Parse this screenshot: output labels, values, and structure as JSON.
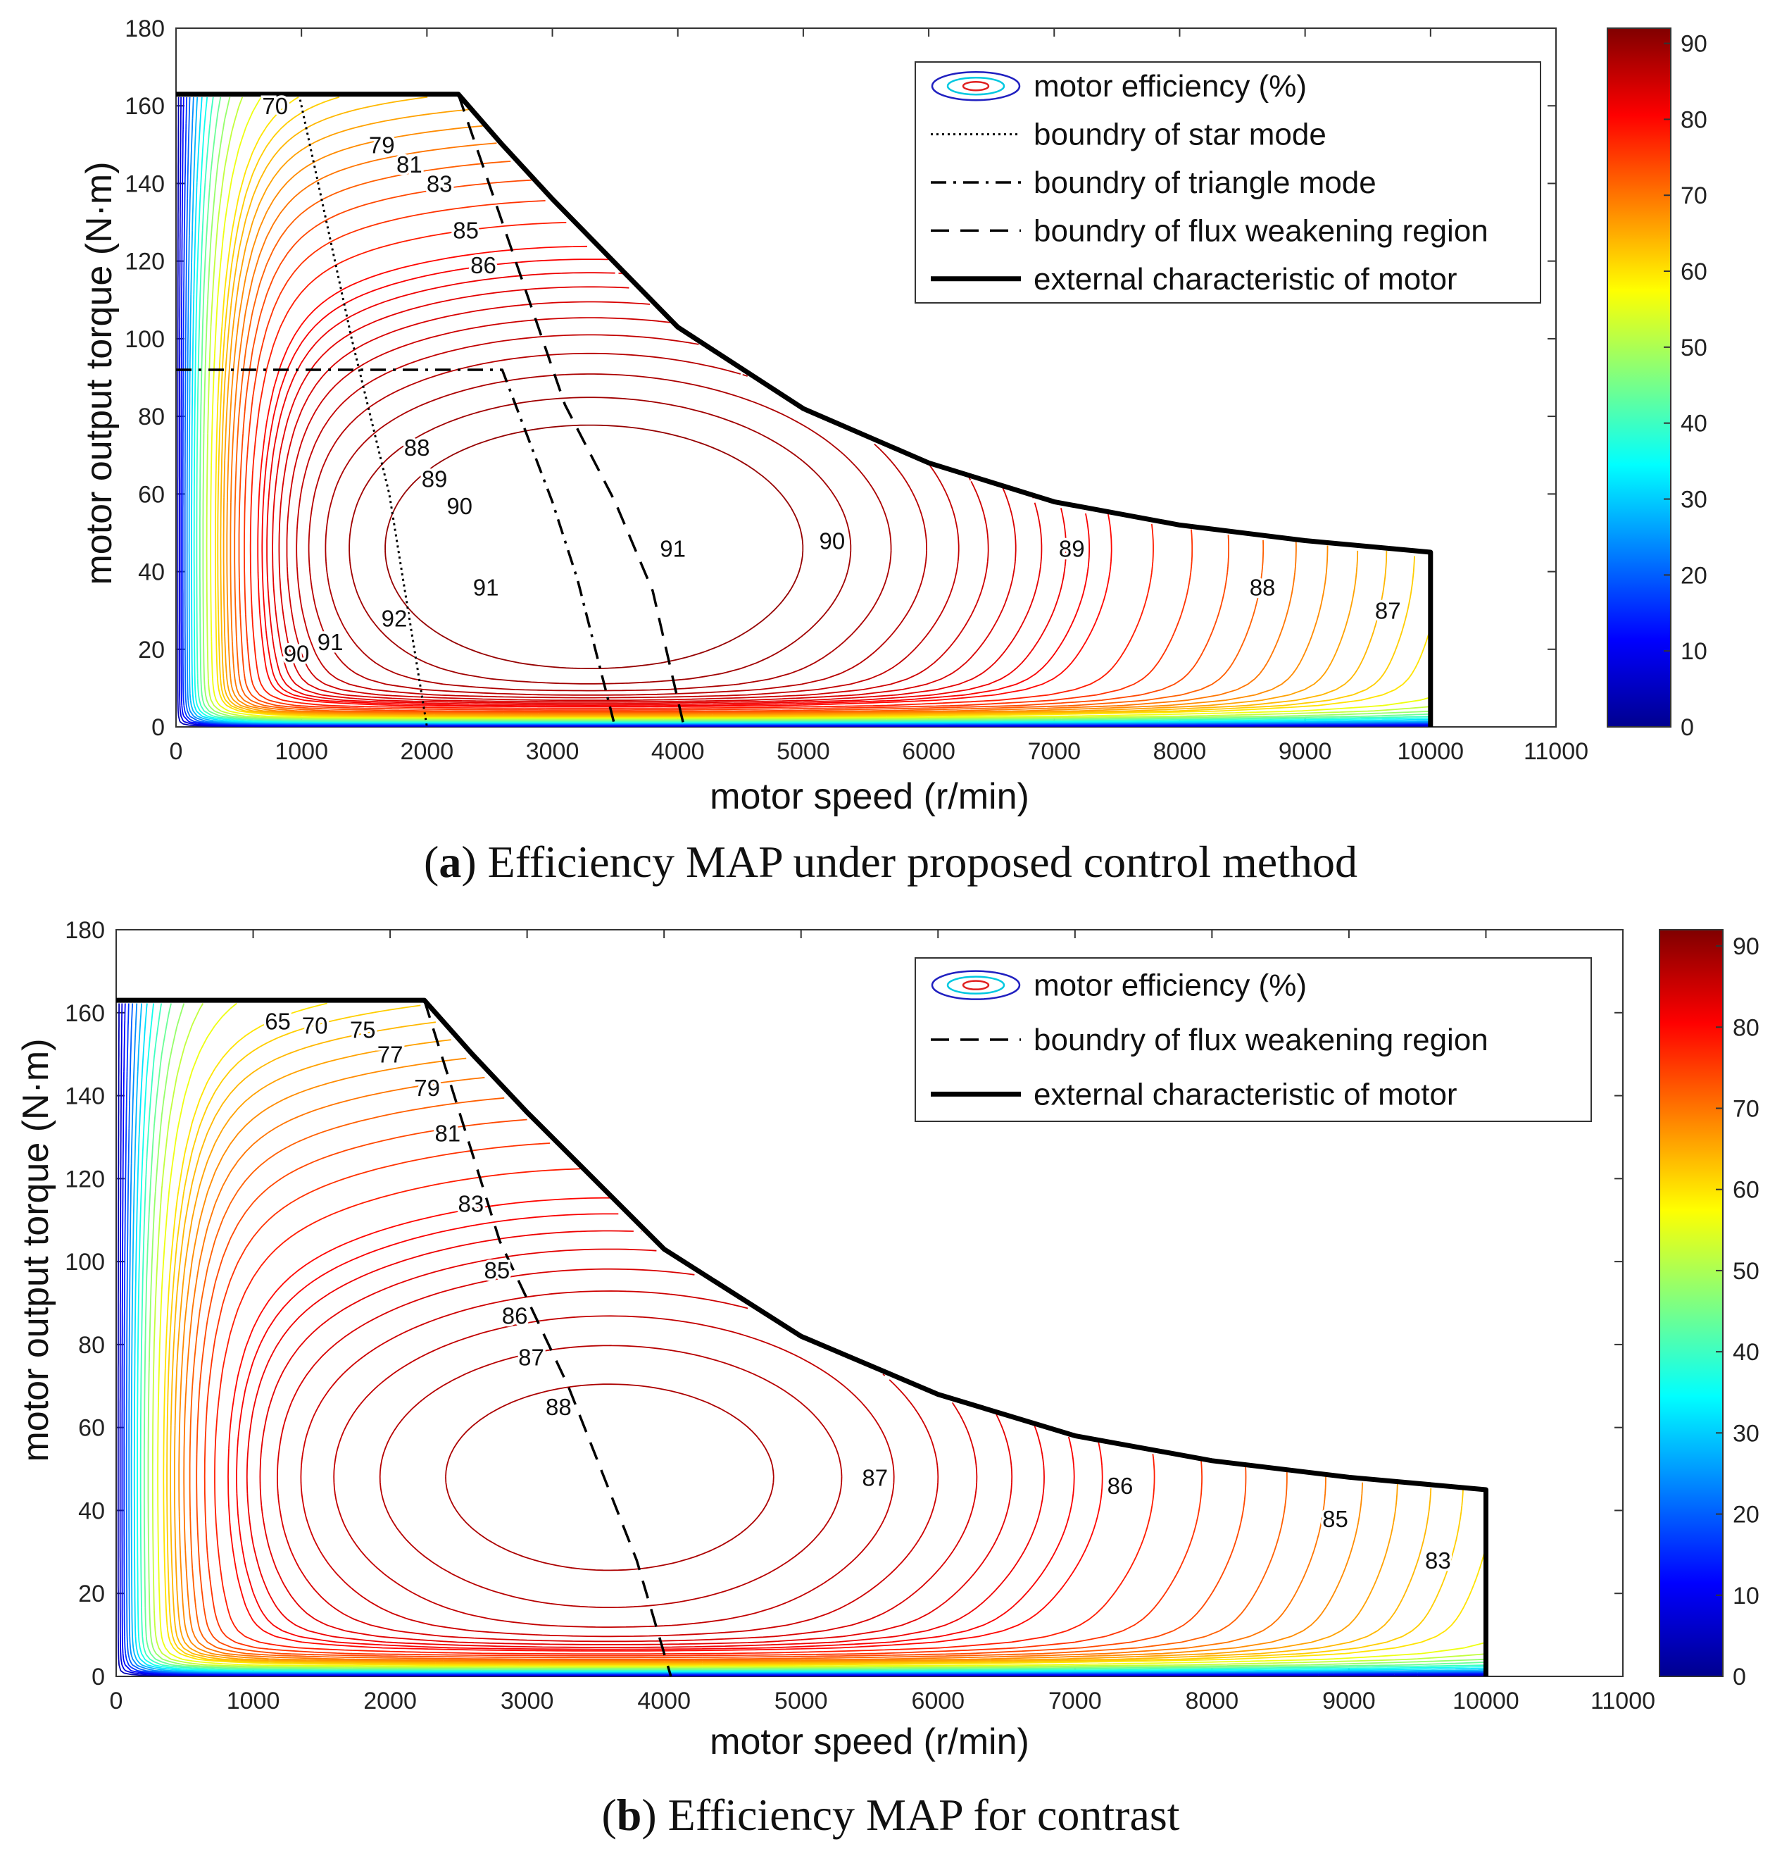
{
  "colormap": [
    "#00008f",
    "#0000ff",
    "#0080ff",
    "#00ffff",
    "#80ff80",
    "#ffff00",
    "#ff8000",
    "#ff0000",
    "#800000"
  ],
  "panels": [
    {
      "caption_letter": "a",
      "caption_text": "Efficiency MAP under proposed control method",
      "legend_entries": [
        {
          "style": "ellipse",
          "label": "motor efficiency (%)"
        },
        {
          "style": "dotted",
          "label": "boundry of star mode"
        },
        {
          "style": "dashdot",
          "label": "boundry of triangle mode"
        },
        {
          "style": "dashed",
          "label": "boundry of flux weakening region"
        },
        {
          "style": "thick",
          "label": "external characteristic of motor"
        }
      ],
      "contour_labels": [
        {
          "text": "70",
          "x": 790,
          "y": 160
        },
        {
          "text": "79",
          "x": 1640,
          "y": 150
        },
        {
          "text": "81",
          "x": 1860,
          "y": 145
        },
        {
          "text": "83",
          "x": 2100,
          "y": 140
        },
        {
          "text": "85",
          "x": 2310,
          "y": 128
        },
        {
          "text": "86",
          "x": 2450,
          "y": 119
        },
        {
          "text": "88",
          "x": 1920,
          "y": 72
        },
        {
          "text": "89",
          "x": 2060,
          "y": 64
        },
        {
          "text": "90",
          "x": 2260,
          "y": 57
        },
        {
          "text": "91",
          "x": 2470,
          "y": 36
        },
        {
          "text": "92",
          "x": 1740,
          "y": 28
        },
        {
          "text": "91",
          "x": 1230,
          "y": 22
        },
        {
          "text": "90",
          "x": 960,
          "y": 19
        },
        {
          "text": "91",
          "x": 3960,
          "y": 46
        },
        {
          "text": "90",
          "x": 5230,
          "y": 48
        },
        {
          "text": "89",
          "x": 7140,
          "y": 46
        },
        {
          "text": "88",
          "x": 8660,
          "y": 36
        },
        {
          "text": "87",
          "x": 9660,
          "y": 30
        }
      ],
      "chart_data": {
        "type": "contour",
        "title": "Efficiency MAP under proposed control method",
        "xlabel": "motor speed (r/min)",
        "ylabel": "motor output torque (N·m)",
        "xlim": [
          0,
          11000
        ],
        "ylim": [
          0,
          180
        ],
        "xticks": [
          0,
          1000,
          2000,
          3000,
          4000,
          5000,
          6000,
          7000,
          8000,
          9000,
          10000,
          11000
        ],
        "yticks": [
          0,
          20,
          40,
          60,
          80,
          100,
          120,
          140,
          160,
          180
        ],
        "colorbar": {
          "min": 0,
          "max": 92,
          "ticks": [
            0,
            10,
            20,
            30,
            40,
            50,
            60,
            70,
            80,
            90
          ]
        },
        "series": [
          {
            "name": "external characteristic of motor",
            "style": "thick",
            "x": [
              0,
              2250,
              2600,
              3000,
              4000,
              5000,
              6000,
              7000,
              8000,
              9000,
              10000,
              10000
            ],
            "y": [
              163,
              163,
              150,
              136,
              103,
              82,
              68,
              58,
              52,
              48,
              45,
              0
            ]
          },
          {
            "name": "boundry of star mode",
            "style": "dotted",
            "x": [
              980,
              1400,
              1700,
              1850,
              2000
            ],
            "y": [
              163,
              100,
              60,
              30,
              0
            ]
          },
          {
            "name": "boundry of triangle mode",
            "style": "dashdot",
            "x": [
              0,
              2600,
              3000,
              3200,
              3500
            ],
            "y": [
              92,
              92,
              58,
              38,
              0
            ]
          },
          {
            "name": "boundry of flux weakening region",
            "style": "dashed",
            "x": [
              2250,
              3100,
              3500,
              3800,
              4050
            ],
            "y": [
              163,
              83,
              58,
              35,
              0
            ]
          }
        ]
      }
    },
    {
      "caption_letter": "b",
      "caption_text": "Efficiency MAP for contrast",
      "legend_entries": [
        {
          "style": "ellipse",
          "label": "motor efficiency (%)"
        },
        {
          "style": "dashed",
          "label": "boundry of flux weakening region"
        },
        {
          "style": "thick",
          "label": "external characteristic of motor"
        }
      ],
      "contour_labels": [
        {
          "text": "65",
          "x": 1180,
          "y": 158
        },
        {
          "text": "70",
          "x": 1450,
          "y": 157
        },
        {
          "text": "75",
          "x": 1800,
          "y": 156
        },
        {
          "text": "77",
          "x": 2000,
          "y": 150
        },
        {
          "text": "79",
          "x": 2270,
          "y": 142
        },
        {
          "text": "81",
          "x": 2420,
          "y": 131
        },
        {
          "text": "83",
          "x": 2590,
          "y": 114
        },
        {
          "text": "85",
          "x": 2780,
          "y": 98
        },
        {
          "text": "86",
          "x": 2910,
          "y": 87
        },
        {
          "text": "87",
          "x": 3030,
          "y": 77
        },
        {
          "text": "88",
          "x": 3230,
          "y": 65
        },
        {
          "text": "87",
          "x": 5540,
          "y": 48
        },
        {
          "text": "86",
          "x": 7330,
          "y": 46
        },
        {
          "text": "85",
          "x": 8900,
          "y": 38
        },
        {
          "text": "83",
          "x": 9650,
          "y": 28
        }
      ],
      "chart_data": {
        "type": "contour",
        "title": "Efficiency MAP for contrast",
        "xlabel": "motor speed (r/min)",
        "ylabel": "motor output torque (N·m)",
        "xlim": [
          0,
          11000
        ],
        "ylim": [
          0,
          180
        ],
        "xticks": [
          0,
          1000,
          2000,
          3000,
          4000,
          5000,
          6000,
          7000,
          8000,
          9000,
          10000,
          11000
        ],
        "yticks": [
          0,
          20,
          40,
          60,
          80,
          100,
          120,
          140,
          160,
          180
        ],
        "colorbar": {
          "min": 0,
          "max": 92,
          "ticks": [
            0,
            10,
            20,
            30,
            40,
            50,
            60,
            70,
            80,
            90
          ]
        },
        "series": [
          {
            "name": "external characteristic of motor",
            "style": "thick",
            "x": [
              0,
              2250,
              2600,
              3000,
              4000,
              5000,
              6000,
              7000,
              8000,
              9000,
              10000,
              10000
            ],
            "y": [
              163,
              163,
              150,
              136,
              103,
              82,
              68,
              58,
              52,
              48,
              45,
              0
            ]
          },
          {
            "name": "boundry of flux weakening region",
            "style": "dashed",
            "x": [
              2250,
              2800,
              3300,
              3800,
              4050
            ],
            "y": [
              163,
              105,
              70,
              28,
              0
            ]
          }
        ]
      }
    }
  ]
}
